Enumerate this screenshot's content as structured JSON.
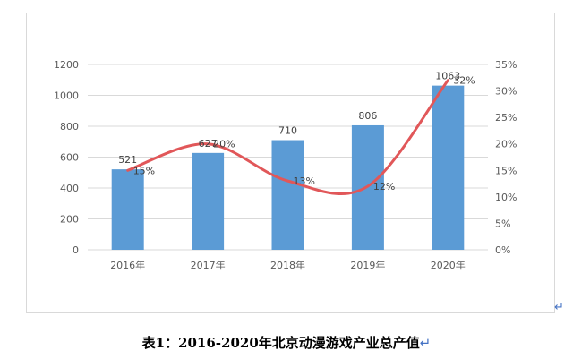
{
  "chart_data": {
    "type": "bar",
    "categories": [
      "2016年",
      "2017年",
      "2018年",
      "2019年",
      "2020年"
    ],
    "series": [
      {
        "type": "bar",
        "values": [
          521,
          627,
          710,
          806,
          1063
        ],
        "color": "#5b9bd5",
        "labels": [
          "521",
          "627",
          "710",
          "806",
          "1063"
        ]
      },
      {
        "type": "line",
        "values": [
          15,
          20,
          13,
          12,
          32
        ],
        "color": "#e15759",
        "labels": [
          "15%",
          "20%",
          "13%",
          "12%",
          "32%"
        ]
      }
    ],
    "ylim": [
      0,
      1200
    ],
    "yticks": [
      "0",
      "200",
      "400",
      "600",
      "800",
      "1000",
      "1200"
    ],
    "y2lim": [
      0,
      35
    ],
    "y2ticks": [
      "0%",
      "5%",
      "10%",
      "15%",
      "20%",
      "25%",
      "30%",
      "35%"
    ],
    "grid": true,
    "legend": "none"
  },
  "caption": {
    "text": "表1：2016-2020年北京动漫游戏产业总产值",
    "return_mark": "↵"
  },
  "frame_return_mark": "↵"
}
